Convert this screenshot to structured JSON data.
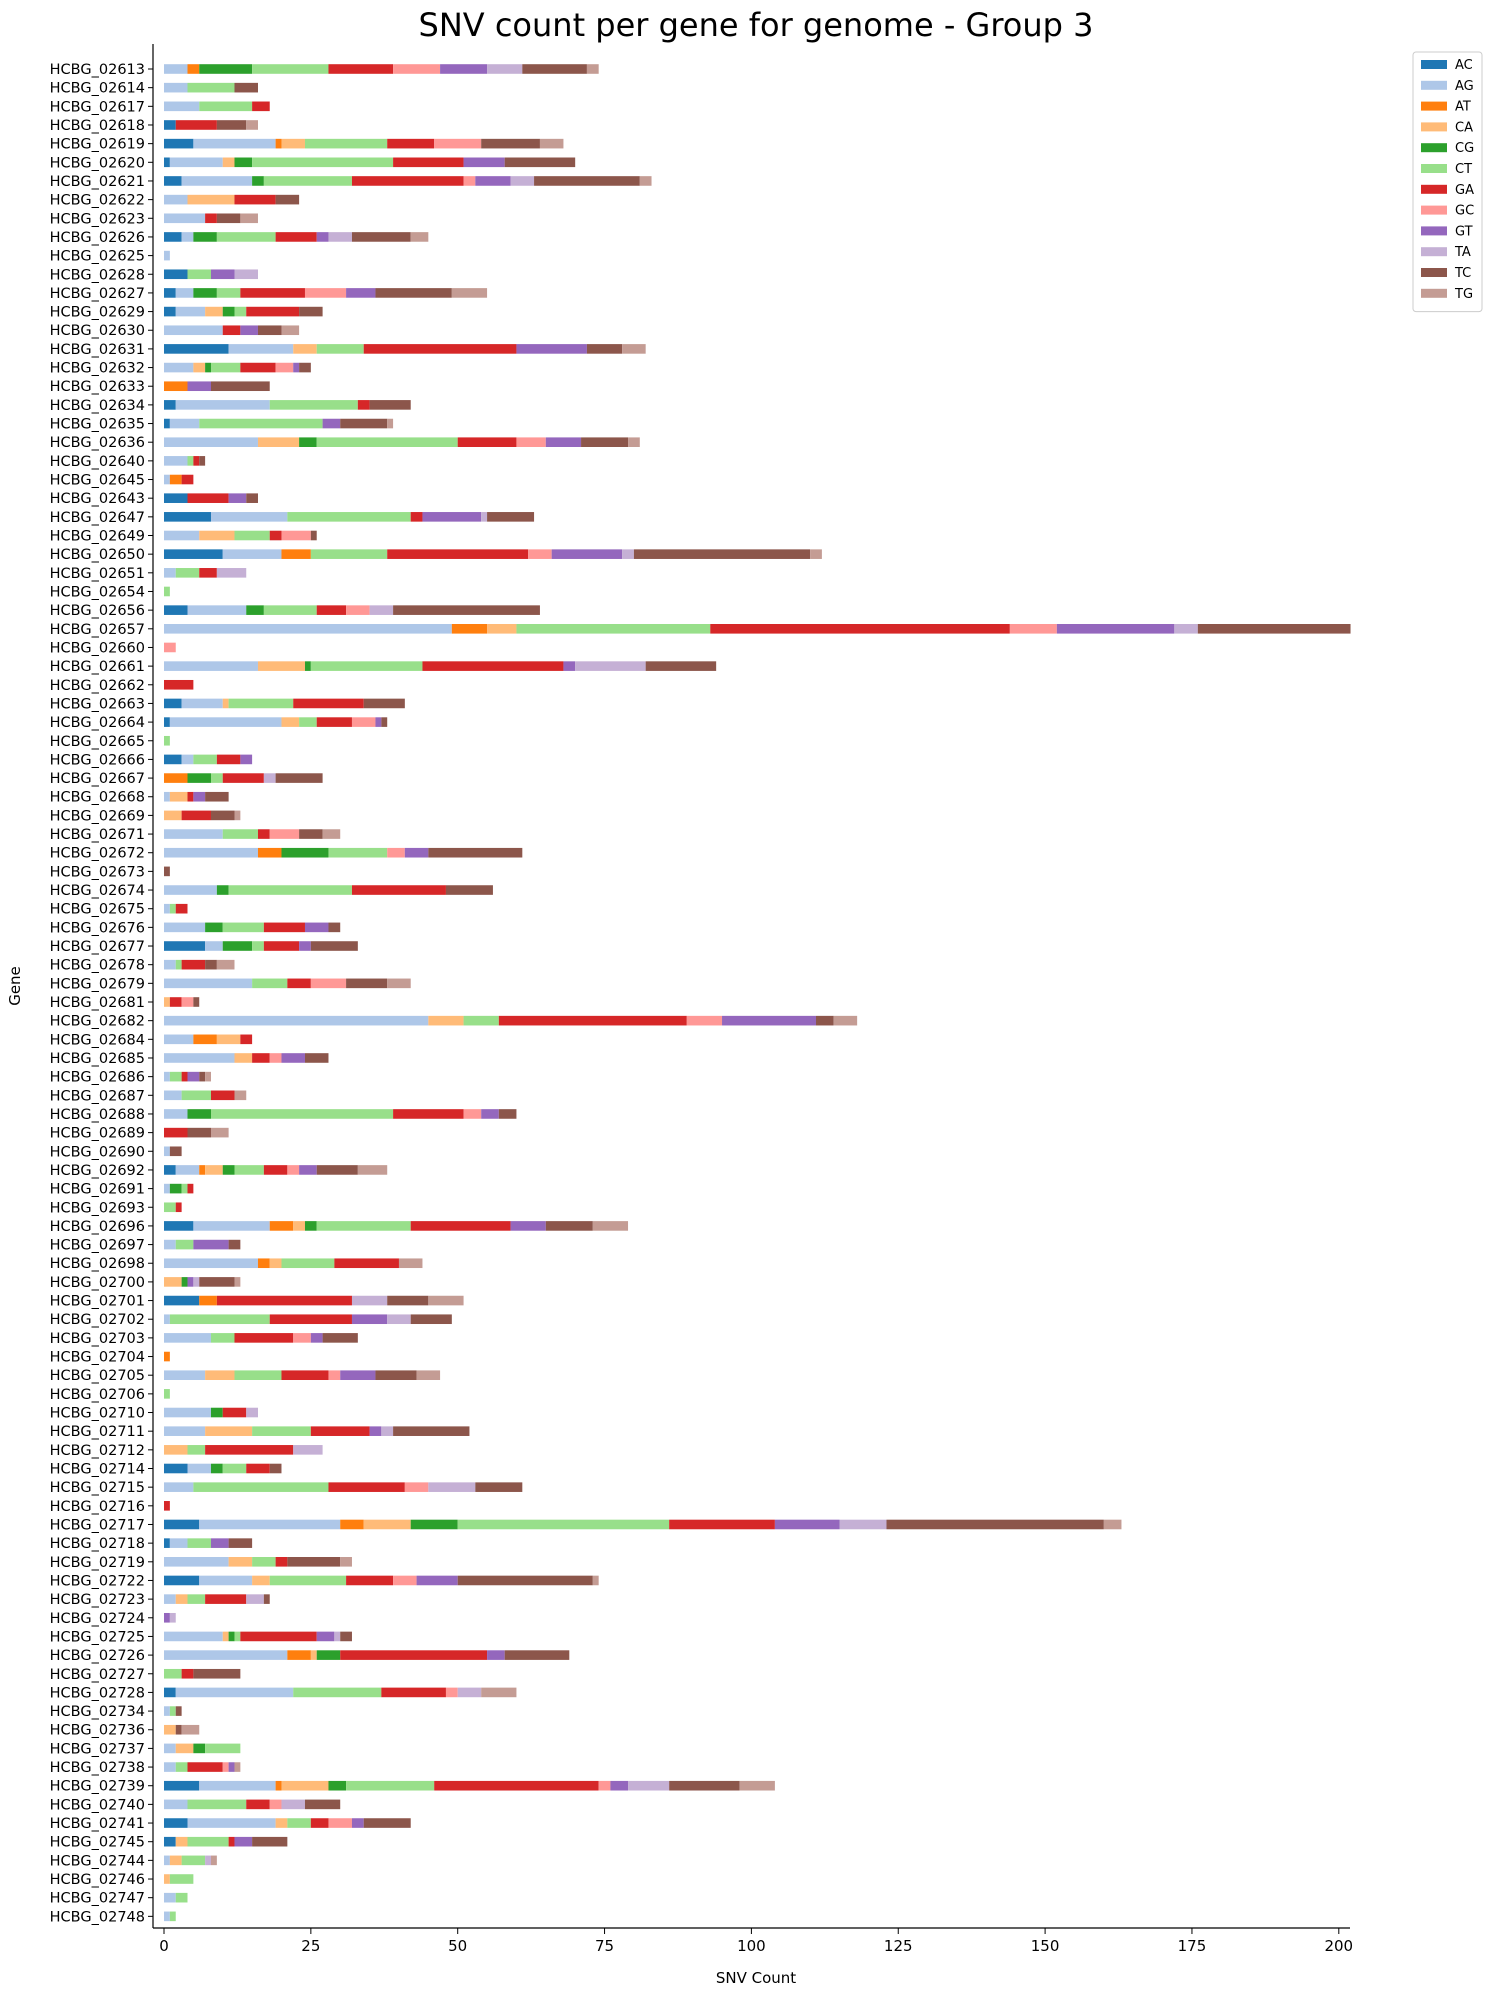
{
  "chart_data": {
    "type": "bar",
    "orientation": "horizontal",
    "stacked": true,
    "title": "SNV count per gene for genome - Group 3",
    "xlabel": "SNV Count",
    "ylabel": "Gene",
    "xlim": [
      0,
      202
    ],
    "xticks": [
      0,
      25,
      50,
      75,
      100,
      125,
      150,
      175,
      200
    ],
    "xtick_labels": [
      "0",
      "25",
      "50",
      "75",
      "100",
      "125",
      "150",
      "175",
      "200"
    ],
    "legend_position": "top-right",
    "grid": false,
    "categories": [
      "HCBG_02613",
      "HCBG_02614",
      "HCBG_02617",
      "HCBG_02618",
      "HCBG_02619",
      "HCBG_02620",
      "HCBG_02621",
      "HCBG_02622",
      "HCBG_02623",
      "HCBG_02626",
      "HCBG_02625",
      "HCBG_02628",
      "HCBG_02627",
      "HCBG_02629",
      "HCBG_02630",
      "HCBG_02631",
      "HCBG_02632",
      "HCBG_02633",
      "HCBG_02634",
      "HCBG_02635",
      "HCBG_02636",
      "HCBG_02640",
      "HCBG_02645",
      "HCBG_02643",
      "HCBG_02647",
      "HCBG_02649",
      "HCBG_02650",
      "HCBG_02651",
      "HCBG_02654",
      "HCBG_02656",
      "HCBG_02657",
      "HCBG_02660",
      "HCBG_02661",
      "HCBG_02662",
      "HCBG_02663",
      "HCBG_02664",
      "HCBG_02665",
      "HCBG_02666",
      "HCBG_02667",
      "HCBG_02668",
      "HCBG_02669",
      "HCBG_02671",
      "HCBG_02672",
      "HCBG_02673",
      "HCBG_02674",
      "HCBG_02675",
      "HCBG_02676",
      "HCBG_02677",
      "HCBG_02678",
      "HCBG_02679",
      "HCBG_02681",
      "HCBG_02682",
      "HCBG_02684",
      "HCBG_02685",
      "HCBG_02686",
      "HCBG_02687",
      "HCBG_02688",
      "HCBG_02689",
      "HCBG_02690",
      "HCBG_02692",
      "HCBG_02691",
      "HCBG_02693",
      "HCBG_02696",
      "HCBG_02697",
      "HCBG_02698",
      "HCBG_02700",
      "HCBG_02701",
      "HCBG_02702",
      "HCBG_02703",
      "HCBG_02704",
      "HCBG_02705",
      "HCBG_02706",
      "HCBG_02710",
      "HCBG_02711",
      "HCBG_02712",
      "HCBG_02714",
      "HCBG_02715",
      "HCBG_02716",
      "HCBG_02717",
      "HCBG_02718",
      "HCBG_02719",
      "HCBG_02722",
      "HCBG_02723",
      "HCBG_02724",
      "HCBG_02725",
      "HCBG_02726",
      "HCBG_02727",
      "HCBG_02728",
      "HCBG_02734",
      "HCBG_02736",
      "HCBG_02737",
      "HCBG_02738",
      "HCBG_02739",
      "HCBG_02740",
      "HCBG_02741",
      "HCBG_02745",
      "HCBG_02744",
      "HCBG_02746",
      "HCBG_02747",
      "HCBG_02748"
    ],
    "series": [
      {
        "name": "AC",
        "color": "#1f77b4",
        "values": [
          0,
          0,
          0,
          2,
          5,
          1,
          3,
          0,
          0,
          3,
          0,
          4,
          2,
          2,
          0,
          11,
          0,
          0,
          2,
          1,
          0,
          0,
          0,
          4,
          8,
          0,
          10,
          0,
          0,
          4,
          0,
          0,
          0,
          0,
          3,
          1,
          0,
          3,
          0,
          0,
          0,
          0,
          0,
          0,
          0,
          0,
          0,
          7,
          0,
          0,
          0,
          0,
          0,
          0,
          0,
          0,
          0,
          0,
          0,
          2,
          0,
          0,
          5,
          0,
          0,
          0,
          6,
          0,
          0,
          0,
          0,
          0,
          0,
          0,
          0,
          4,
          0,
          0,
          6,
          1,
          0,
          6,
          0,
          0,
          0,
          0,
          0,
          2,
          0,
          0,
          0,
          0,
          6,
          0,
          4,
          2,
          0,
          0,
          0,
          0
        ]
      },
      {
        "name": "AG",
        "color": "#aec7e8",
        "values": [
          4,
          4,
          6,
          0,
          14,
          9,
          12,
          4,
          7,
          2,
          1,
          0,
          3,
          5,
          10,
          11,
          5,
          0,
          16,
          5,
          16,
          4,
          1,
          0,
          13,
          6,
          10,
          2,
          0,
          10,
          49,
          0,
          16,
          0,
          7,
          19,
          0,
          2,
          0,
          1,
          0,
          10,
          16,
          0,
          9,
          1,
          7,
          3,
          2,
          15,
          0,
          45,
          5,
          12,
          1,
          3,
          4,
          0,
          1,
          4,
          1,
          0,
          13,
          2,
          16,
          0,
          0,
          1,
          8,
          0,
          7,
          0,
          8,
          7,
          0,
          4,
          5,
          0,
          24,
          3,
          11,
          9,
          2,
          0,
          10,
          21,
          0,
          20,
          1,
          0,
          2,
          2,
          13,
          4,
          15,
          0,
          1,
          0,
          2,
          1
        ]
      },
      {
        "name": "AT",
        "color": "#ff7f0e",
        "values": [
          2,
          0,
          0,
          0,
          1,
          0,
          0,
          0,
          0,
          0,
          0,
          0,
          0,
          0,
          0,
          0,
          0,
          4,
          0,
          0,
          0,
          0,
          2,
          0,
          0,
          0,
          5,
          0,
          0,
          0,
          6,
          0,
          0,
          0,
          0,
          0,
          0,
          0,
          4,
          0,
          0,
          0,
          4,
          0,
          0,
          0,
          0,
          0,
          0,
          0,
          0,
          0,
          4,
          0,
          0,
          0,
          0,
          0,
          0,
          1,
          0,
          0,
          4,
          0,
          2,
          0,
          3,
          0,
          0,
          1,
          0,
          0,
          0,
          0,
          0,
          0,
          0,
          0,
          4,
          0,
          0,
          0,
          0,
          0,
          0,
          4,
          0,
          0,
          0,
          0,
          0,
          0,
          1,
          0,
          0,
          0,
          0,
          0,
          0,
          0
        ]
      },
      {
        "name": "CA",
        "color": "#ffbb78",
        "values": [
          0,
          0,
          0,
          0,
          4,
          2,
          0,
          8,
          0,
          0,
          0,
          0,
          0,
          3,
          0,
          4,
          2,
          0,
          0,
          0,
          7,
          0,
          0,
          0,
          0,
          6,
          0,
          0,
          0,
          0,
          5,
          0,
          8,
          0,
          1,
          3,
          0,
          0,
          0,
          3,
          3,
          0,
          0,
          0,
          0,
          0,
          0,
          0,
          0,
          0,
          1,
          6,
          4,
          3,
          0,
          0,
          0,
          0,
          0,
          3,
          0,
          0,
          2,
          0,
          2,
          3,
          0,
          0,
          0,
          0,
          5,
          0,
          0,
          8,
          4,
          0,
          0,
          0,
          8,
          0,
          4,
          3,
          2,
          0,
          1,
          1,
          0,
          0,
          0,
          2,
          3,
          0,
          8,
          0,
          2,
          2,
          2,
          1,
          0,
          0
        ]
      },
      {
        "name": "CG",
        "color": "#2ca02c",
        "values": [
          9,
          0,
          0,
          0,
          0,
          3,
          2,
          0,
          0,
          4,
          0,
          0,
          4,
          2,
          0,
          0,
          1,
          0,
          0,
          0,
          3,
          0,
          0,
          0,
          0,
          0,
          0,
          0,
          0,
          3,
          0,
          0,
          1,
          0,
          0,
          0,
          0,
          0,
          4,
          0,
          0,
          0,
          8,
          0,
          2,
          0,
          3,
          5,
          0,
          0,
          0,
          0,
          0,
          0,
          0,
          0,
          4,
          0,
          0,
          2,
          2,
          0,
          2,
          0,
          0,
          1,
          0,
          0,
          0,
          0,
          0,
          0,
          2,
          0,
          0,
          2,
          0,
          0,
          8,
          0,
          0,
          0,
          0,
          0,
          1,
          4,
          0,
          0,
          0,
          0,
          2,
          0,
          3,
          0,
          0,
          0,
          0,
          0,
          0,
          0
        ]
      },
      {
        "name": "CT",
        "color": "#98df8a",
        "values": [
          13,
          8,
          9,
          0,
          14,
          24,
          15,
          0,
          0,
          10,
          0,
          4,
          4,
          2,
          0,
          8,
          5,
          0,
          15,
          21,
          24,
          1,
          0,
          0,
          21,
          6,
          13,
          4,
          1,
          9,
          33,
          0,
          19,
          0,
          11,
          3,
          1,
          4,
          2,
          0,
          0,
          6,
          10,
          0,
          21,
          1,
          7,
          2,
          1,
          6,
          0,
          6,
          0,
          0,
          2,
          5,
          31,
          0,
          0,
          5,
          1,
          2,
          16,
          3,
          9,
          0,
          0,
          17,
          4,
          0,
          8,
          1,
          0,
          10,
          3,
          4,
          23,
          0,
          36,
          4,
          4,
          13,
          3,
          0,
          1,
          0,
          3,
          15,
          1,
          0,
          6,
          2,
          15,
          10,
          4,
          7,
          4,
          4,
          2,
          1
        ]
      },
      {
        "name": "GA",
        "color": "#d62728",
        "values": [
          11,
          0,
          3,
          7,
          8,
          12,
          19,
          7,
          2,
          7,
          0,
          0,
          11,
          9,
          3,
          26,
          6,
          0,
          2,
          0,
          10,
          1,
          2,
          7,
          2,
          2,
          24,
          3,
          0,
          5,
          51,
          0,
          24,
          5,
          12,
          6,
          0,
          4,
          7,
          1,
          5,
          2,
          0,
          0,
          16,
          2,
          7,
          6,
          4,
          4,
          2,
          32,
          2,
          3,
          1,
          4,
          12,
          4,
          0,
          4,
          1,
          1,
          17,
          0,
          11,
          0,
          23,
          14,
          10,
          0,
          8,
          0,
          4,
          10,
          15,
          4,
          13,
          1,
          18,
          0,
          2,
          8,
          7,
          0,
          13,
          25,
          2,
          11,
          0,
          0,
          0,
          6,
          28,
          4,
          3,
          1,
          0,
          0,
          0,
          0
        ]
      },
      {
        "name": "GC",
        "color": "#ff9896",
        "values": [
          8,
          0,
          0,
          0,
          8,
          0,
          2,
          0,
          0,
          0,
          0,
          0,
          7,
          0,
          0,
          0,
          3,
          0,
          0,
          0,
          5,
          0,
          0,
          0,
          0,
          5,
          4,
          0,
          0,
          4,
          8,
          2,
          0,
          0,
          0,
          4,
          0,
          0,
          0,
          0,
          0,
          5,
          3,
          0,
          0,
          0,
          0,
          0,
          0,
          6,
          2,
          6,
          0,
          2,
          0,
          0,
          3,
          0,
          0,
          2,
          0,
          0,
          0,
          0,
          0,
          0,
          0,
          0,
          3,
          0,
          2,
          0,
          0,
          0,
          0,
          0,
          4,
          0,
          0,
          0,
          0,
          4,
          0,
          0,
          0,
          0,
          0,
          2,
          0,
          0,
          0,
          1,
          2,
          2,
          4,
          0,
          0,
          0,
          0,
          0
        ]
      },
      {
        "name": "GT",
        "color": "#9467bd",
        "values": [
          8,
          0,
          0,
          0,
          0,
          7,
          6,
          0,
          0,
          2,
          0,
          4,
          5,
          0,
          3,
          12,
          1,
          4,
          0,
          3,
          6,
          0,
          0,
          3,
          10,
          0,
          12,
          0,
          0,
          0,
          20,
          0,
          2,
          0,
          0,
          1,
          0,
          2,
          0,
          2,
          0,
          0,
          4,
          0,
          0,
          0,
          4,
          2,
          0,
          0,
          0,
          16,
          0,
          4,
          2,
          0,
          3,
          0,
          0,
          3,
          0,
          0,
          6,
          6,
          0,
          1,
          0,
          6,
          2,
          0,
          6,
          0,
          0,
          2,
          0,
          0,
          0,
          0,
          11,
          3,
          0,
          7,
          0,
          1,
          3,
          3,
          0,
          0,
          0,
          0,
          0,
          1,
          3,
          0,
          2,
          3,
          0,
          0,
          0,
          0
        ]
      },
      {
        "name": "TA",
        "color": "#c5b0d5",
        "values": [
          6,
          0,
          0,
          0,
          0,
          0,
          4,
          0,
          0,
          4,
          0,
          4,
          0,
          0,
          0,
          0,
          0,
          0,
          0,
          0,
          0,
          0,
          0,
          0,
          1,
          0,
          2,
          5,
          0,
          4,
          4,
          0,
          12,
          0,
          0,
          0,
          0,
          0,
          2,
          0,
          0,
          0,
          0,
          0,
          0,
          0,
          0,
          0,
          0,
          0,
          0,
          0,
          0,
          0,
          0,
          0,
          0,
          0,
          0,
          0,
          0,
          0,
          0,
          0,
          0,
          1,
          6,
          4,
          0,
          0,
          0,
          0,
          2,
          2,
          5,
          0,
          8,
          0,
          8,
          0,
          0,
          0,
          3,
          1,
          1,
          0,
          0,
          4,
          0,
          0,
          0,
          0,
          7,
          4,
          0,
          0,
          1,
          0,
          0,
          0
        ]
      },
      {
        "name": "TC",
        "color": "#8c564b",
        "values": [
          11,
          4,
          0,
          5,
          10,
          12,
          18,
          4,
          4,
          10,
          0,
          0,
          13,
          4,
          4,
          6,
          2,
          10,
          7,
          8,
          8,
          1,
          0,
          2,
          8,
          1,
          30,
          0,
          0,
          25,
          26,
          0,
          12,
          0,
          7,
          1,
          0,
          0,
          8,
          4,
          4,
          4,
          16,
          1,
          8,
          0,
          2,
          8,
          2,
          7,
          1,
          3,
          0,
          4,
          1,
          0,
          3,
          4,
          2,
          7,
          0,
          0,
          8,
          2,
          0,
          6,
          7,
          7,
          6,
          0,
          7,
          0,
          0,
          13,
          0,
          2,
          8,
          0,
          37,
          4,
          9,
          23,
          1,
          0,
          2,
          11,
          8,
          0,
          1,
          1,
          0,
          0,
          12,
          6,
          8,
          6,
          0,
          0,
          0,
          0
        ]
      },
      {
        "name": "TG",
        "color": "#c49c94",
        "values": [
          2,
          0,
          0,
          2,
          4,
          0,
          2,
          0,
          3,
          3,
          0,
          0,
          6,
          0,
          3,
          4,
          0,
          0,
          0,
          1,
          2,
          0,
          0,
          0,
          0,
          0,
          2,
          0,
          0,
          0,
          0,
          0,
          0,
          0,
          0,
          0,
          0,
          0,
          0,
          0,
          1,
          3,
          0,
          0,
          0,
          0,
          0,
          0,
          3,
          4,
          0,
          4,
          0,
          0,
          1,
          2,
          0,
          3,
          0,
          5,
          0,
          0,
          6,
          0,
          4,
          1,
          6,
          0,
          0,
          0,
          4,
          0,
          0,
          0,
          0,
          0,
          0,
          0,
          3,
          0,
          2,
          1,
          0,
          0,
          0,
          0,
          0,
          6,
          0,
          3,
          0,
          1,
          6,
          0,
          0,
          0,
          1,
          0,
          0,
          0
        ]
      }
    ]
  }
}
